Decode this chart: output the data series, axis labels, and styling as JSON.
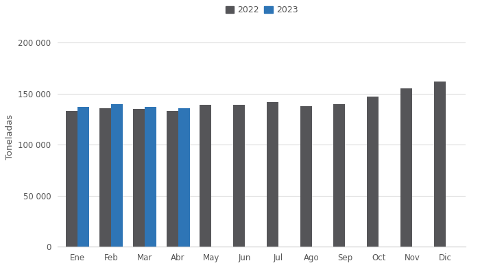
{
  "months": [
    "Ene",
    "Feb",
    "Mar",
    "Abr",
    "May",
    "Jun",
    "Jul",
    "Ago",
    "Sep",
    "Oct",
    "Nov",
    "Dic"
  ],
  "values_2022": [
    133000,
    136000,
    135000,
    133000,
    139000,
    139000,
    142000,
    138000,
    140000,
    147000,
    155000,
    162000
  ],
  "values_2023": [
    137000,
    139500,
    137000,
    136000,
    null,
    null,
    null,
    null,
    null,
    null,
    null,
    null
  ],
  "color_2022": "#555558",
  "color_2023": "#2e75b6",
  "ylabel": "Toneladas",
  "ylim": [
    0,
    215000
  ],
  "yticks": [
    0,
    50000,
    100000,
    150000,
    200000
  ],
  "ytick_labels": [
    "0",
    "50 000",
    "100 000",
    "150 000",
    "200 000"
  ],
  "legend_2022": "2022",
  "legend_2023": "2023",
  "bar_width": 0.35,
  "background_color": "#ffffff",
  "grid_color": "#dddddd"
}
